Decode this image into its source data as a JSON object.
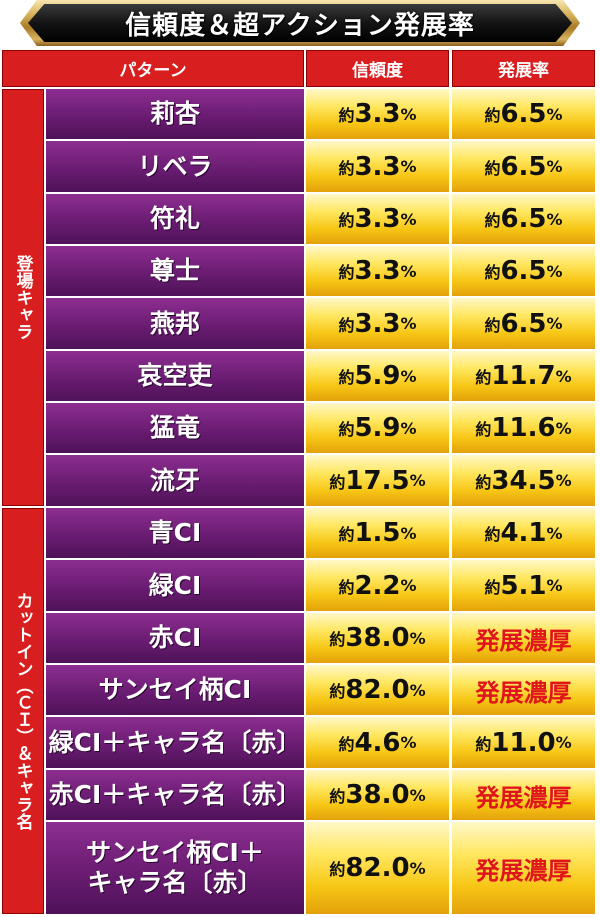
{
  "title": "信頼度＆超アクション発展率",
  "headers": {
    "pattern": "パターン",
    "trust": "信頼度",
    "dev": "発展率"
  },
  "groups": [
    {
      "label": "登場キャラ"
    },
    {
      "label": "カットイン（ＣＩ）＆キャラ名"
    }
  ],
  "rows": [
    {
      "pattern": "莉杏",
      "trust": {
        "pre": "約",
        "num": "3.3",
        "pct": "%"
      },
      "dev": {
        "pre": "約",
        "num": "6.5",
        "pct": "%"
      }
    },
    {
      "pattern": "リベラ",
      "trust": {
        "pre": "約",
        "num": "3.3",
        "pct": "%"
      },
      "dev": {
        "pre": "約",
        "num": "6.5",
        "pct": "%"
      }
    },
    {
      "pattern": "符礼",
      "trust": {
        "pre": "約",
        "num": "3.3",
        "pct": "%"
      },
      "dev": {
        "pre": "約",
        "num": "6.5",
        "pct": "%"
      }
    },
    {
      "pattern": "尊士",
      "trust": {
        "pre": "約",
        "num": "3.3",
        "pct": "%"
      },
      "dev": {
        "pre": "約",
        "num": "6.5",
        "pct": "%"
      }
    },
    {
      "pattern": "燕邦",
      "trust": {
        "pre": "約",
        "num": "3.3",
        "pct": "%"
      },
      "dev": {
        "pre": "約",
        "num": "6.5",
        "pct": "%"
      }
    },
    {
      "pattern": "哀空吏",
      "trust": {
        "pre": "約",
        "num": "5.9",
        "pct": "%"
      },
      "dev": {
        "pre": "約",
        "num": "11.7",
        "pct": "%"
      }
    },
    {
      "pattern": "猛竜",
      "trust": {
        "pre": "約",
        "num": "5.9",
        "pct": "%"
      },
      "dev": {
        "pre": "約",
        "num": "11.6",
        "pct": "%"
      }
    },
    {
      "pattern": "流牙",
      "trust": {
        "pre": "約",
        "num": "17.5",
        "pct": "%"
      },
      "dev": {
        "pre": "約",
        "num": "34.5",
        "pct": "%"
      }
    },
    {
      "pattern": "青CI",
      "trust": {
        "pre": "約",
        "num": "1.5",
        "pct": "%"
      },
      "dev": {
        "pre": "約",
        "num": "4.1",
        "pct": "%"
      }
    },
    {
      "pattern": "緑CI",
      "trust": {
        "pre": "約",
        "num": "2.2",
        "pct": "%"
      },
      "dev": {
        "pre": "約",
        "num": "5.1",
        "pct": "%"
      }
    },
    {
      "pattern": "赤CI",
      "trust": {
        "pre": "約",
        "num": "38.0",
        "pct": "%"
      },
      "dev": {
        "text": "発展濃厚"
      }
    },
    {
      "pattern": "サンセイ柄CI",
      "trust": {
        "pre": "約",
        "num": "82.0",
        "pct": "%"
      },
      "dev": {
        "text": "発展濃厚"
      }
    },
    {
      "pattern": "緑CI＋キャラ名〔赤〕",
      "trust": {
        "pre": "約",
        "num": "4.6",
        "pct": "%"
      },
      "dev": {
        "pre": "約",
        "num": "11.0",
        "pct": "%"
      }
    },
    {
      "pattern": "赤CI＋キャラ名〔赤〕",
      "trust": {
        "pre": "約",
        "num": "38.0",
        "pct": "%"
      },
      "dev": {
        "text": "発展濃厚"
      }
    },
    {
      "pattern": "サンセイ柄CI＋\nキャラ名〔赤〕",
      "trust": {
        "pre": "約",
        "num": "82.0",
        "pct": "%"
      },
      "dev": {
        "text": "発展濃厚"
      }
    }
  ]
}
